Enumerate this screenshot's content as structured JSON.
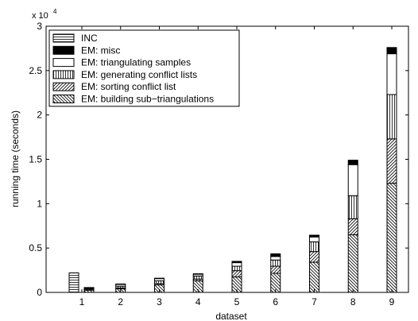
{
  "chart_data": {
    "type": "bar",
    "title": "",
    "xlabel": "dataset",
    "ylabel": "running time (seconds)",
    "y_multiplier_text": "x 10",
    "y_multiplier_exp": "4",
    "ylim": [
      0,
      30000
    ],
    "y_ticks": [
      0,
      5000,
      10000,
      15000,
      20000,
      25000,
      30000
    ],
    "y_tick_labels": [
      "0",
      "0.5",
      "1",
      "1.5",
      "2",
      "2.5",
      "3"
    ],
    "categories": [
      "1",
      "2",
      "3",
      "4",
      "5",
      "6",
      "7",
      "8",
      "9"
    ],
    "legend_position": "top-left",
    "grid": false,
    "inc_series": {
      "name": "INC",
      "pattern": "horizontal-lines",
      "values": [
        2200,
        0,
        0,
        0,
        0,
        0,
        0,
        0,
        0
      ]
    },
    "em_series": [
      {
        "name": "EM: building sub−triangulations",
        "pattern": "back-diagonal",
        "values": [
          250,
          400,
          850,
          1300,
          1750,
          2150,
          3400,
          6500,
          12300
        ]
      },
      {
        "name": "EM: sorting conflict list",
        "pattern": "forward-diagonal",
        "values": [
          50,
          100,
          150,
          200,
          700,
          800,
          1200,
          1800,
          5000
        ]
      },
      {
        "name": "EM: generating conflict lists",
        "pattern": "vertical-lines",
        "values": [
          100,
          200,
          300,
          350,
          500,
          700,
          1100,
          2600,
          5000
        ]
      },
      {
        "name": "EM: triangulating samples",
        "pattern": "white",
        "values": [
          100,
          200,
          250,
          200,
          400,
          400,
          550,
          3500,
          4600
        ]
      },
      {
        "name": "EM: misc",
        "pattern": "black",
        "values": [
          50,
          50,
          50,
          50,
          150,
          300,
          200,
          500,
          700
        ]
      }
    ],
    "legend": [
      {
        "label": "INC",
        "pattern": "horizontal-lines"
      },
      {
        "label": "EM: misc",
        "pattern": "black"
      },
      {
        "label": "EM: triangulating samples",
        "pattern": "white"
      },
      {
        "label": "EM: generating conflict lists",
        "pattern": "vertical-lines"
      },
      {
        "label": "EM: sorting conflict list",
        "pattern": "forward-diagonal"
      },
      {
        "label": "EM: building sub−triangulations",
        "pattern": "back-diagonal"
      }
    ]
  }
}
